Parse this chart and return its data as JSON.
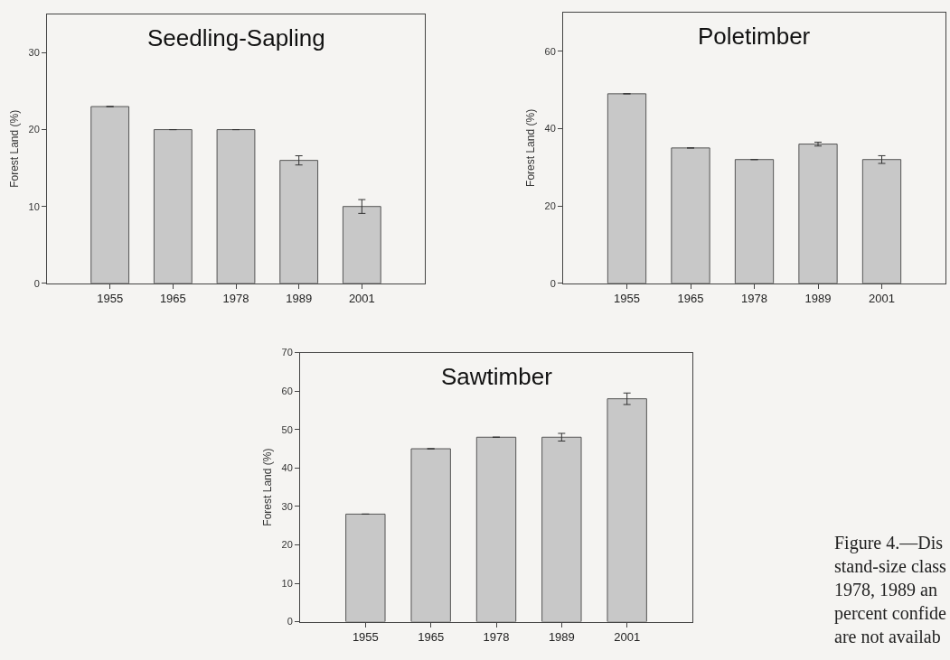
{
  "chart_data": [
    {
      "type": "bar",
      "title": "Seedling-Sapling",
      "ylabel": "Forest Land (%)",
      "categories": [
        "1955",
        "1965",
        "1978",
        "1989",
        "2001"
      ],
      "values": [
        23,
        20,
        20,
        16,
        10
      ],
      "errors": [
        null,
        null,
        null,
        0.6,
        0.9
      ],
      "color": "#c8c8c8",
      "ylim": [
        0,
        35
      ],
      "yticks": [
        0,
        10,
        20,
        30
      ],
      "grid": false
    },
    {
      "type": "bar",
      "title": "Poletimber",
      "ylabel": "Forest Land (%)",
      "categories": [
        "1955",
        "1965",
        "1978",
        "1989",
        "2001"
      ],
      "values": [
        49,
        35,
        32,
        36,
        32
      ],
      "errors": [
        null,
        null,
        null,
        0.5,
        1
      ],
      "color": "#c8c8c8",
      "ylim": [
        0,
        70
      ],
      "yticks": [
        0,
        20,
        40,
        60
      ],
      "grid": false
    },
    {
      "type": "bar",
      "title": "Sawtimber",
      "ylabel": "Forest Land (%)",
      "categories": [
        "1955",
        "1965",
        "1978",
        "1989",
        "2001"
      ],
      "values": [
        28,
        45,
        48,
        48,
        58
      ],
      "errors": [
        null,
        null,
        null,
        1,
        1.5
      ],
      "color": "#c8c8c8",
      "ylim": [
        0,
        70
      ],
      "yticks": [
        0,
        10,
        20,
        30,
        40,
        50,
        60,
        70
      ],
      "grid": false,
      "annotations": [
        "Figure 4.—Dis\nstand-size class\n1978, 1989 an\npercent confide\nare not availab"
      ]
    }
  ]
}
